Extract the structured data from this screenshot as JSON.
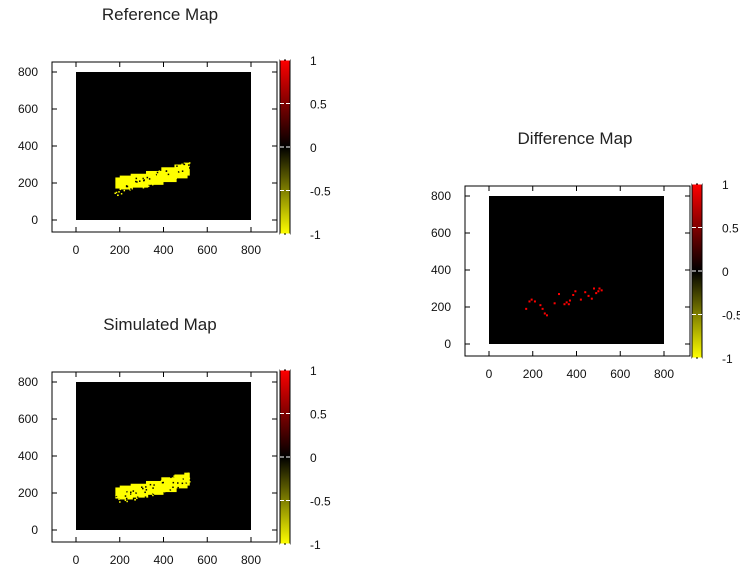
{
  "charts": [
    {
      "id": "reference-map",
      "type": "heatmap",
      "title": "Reference Map",
      "xlabel": "",
      "ylabel": "",
      "xlim": [
        0,
        800
      ],
      "ylim": [
        0,
        800
      ],
      "x_ticks": [
        "0",
        "200",
        "400",
        "600",
        "800"
      ],
      "y_ticks": [
        "0",
        "200",
        "400",
        "600",
        "800"
      ],
      "colorbar": {
        "range": [
          -1,
          1
        ],
        "ticks": [
          "1",
          "0.5",
          "0",
          "-0.5",
          "-1"
        ],
        "colors": {
          "-1": "#ffff00",
          "0": "#000000",
          "1": "#ff0000"
        }
      },
      "background_value": 0,
      "region": {
        "value": -1,
        "color": "#ffff00",
        "description": "yellow region, x approx 180-520, y approx 160-310"
      }
    },
    {
      "id": "simulated-map",
      "type": "heatmap",
      "title": "Simulated Map",
      "xlabel": "",
      "ylabel": "",
      "xlim": [
        0,
        800
      ],
      "ylim": [
        0,
        800
      ],
      "x_ticks": [
        "0",
        "200",
        "400",
        "600",
        "800"
      ],
      "y_ticks": [
        "0",
        "200",
        "400",
        "600",
        "800"
      ],
      "colorbar": {
        "range": [
          -1,
          1
        ],
        "ticks": [
          "1",
          "0.5",
          "0",
          "-0.5",
          "-1"
        ],
        "colors": {
          "-1": "#ffff00",
          "0": "#000000",
          "1": "#ff0000"
        }
      },
      "background_value": 0,
      "region": {
        "value": -1,
        "color": "#ffff00",
        "description": "yellow region, x approx 180-520, y approx 160-310"
      }
    },
    {
      "id": "difference-map",
      "type": "heatmap",
      "title": "Difference Map",
      "xlabel": "",
      "ylabel": "",
      "xlim": [
        0,
        800
      ],
      "ylim": [
        0,
        800
      ],
      "x_ticks": [
        "0",
        "200",
        "400",
        "600",
        "800"
      ],
      "y_ticks": [
        "0",
        "200",
        "400",
        "600",
        "800"
      ],
      "colorbar": {
        "range": [
          -1,
          1
        ],
        "ticks": [
          "1",
          "0.5",
          "0",
          "-0.5",
          "-1"
        ],
        "colors": {
          "-1": "#ffff00",
          "0": "#000000",
          "1": "#ff0000"
        }
      },
      "background_value": 0,
      "region": {
        "value": 1,
        "color": "#ff0000",
        "description": "sparse red pixels, x approx 170-520, y approx 150-310"
      }
    }
  ],
  "chart_data": [
    {
      "type": "heatmap",
      "title": "Reference Map",
      "xlim": [
        0,
        800
      ],
      "ylim": [
        0,
        800
      ],
      "value_range": [
        -1,
        1
      ],
      "background": 0,
      "cells": [
        {
          "x": [
            180,
            210
          ],
          "y": [
            170,
            230
          ],
          "v": -1
        },
        {
          "x": [
            200,
            260
          ],
          "y": [
            165,
            240
          ],
          "v": -1
        },
        {
          "x": [
            250,
            330
          ],
          "y": [
            175,
            250
          ],
          "v": -1
        },
        {
          "x": [
            320,
            400
          ],
          "y": [
            190,
            265
          ],
          "v": -1
        },
        {
          "x": [
            390,
            460
          ],
          "y": [
            205,
            285
          ],
          "v": -1
        },
        {
          "x": [
            450,
            510
          ],
          "y": [
            225,
            300
          ],
          "v": -1
        },
        {
          "x": [
            495,
            520
          ],
          "y": [
            240,
            310
          ],
          "v": -1
        }
      ]
    },
    {
      "type": "heatmap",
      "title": "Simulated Map",
      "xlim": [
        0,
        800
      ],
      "ylim": [
        0,
        800
      ],
      "value_range": [
        -1,
        1
      ],
      "background": 0,
      "cells": [
        {
          "x": [
            180,
            210
          ],
          "y": [
            170,
            230
          ],
          "v": -1
        },
        {
          "x": [
            200,
            260
          ],
          "y": [
            165,
            240
          ],
          "v": -1
        },
        {
          "x": [
            250,
            330
          ],
          "y": [
            175,
            250
          ],
          "v": -1
        },
        {
          "x": [
            320,
            400
          ],
          "y": [
            190,
            265
          ],
          "v": -1
        },
        {
          "x": [
            390,
            460
          ],
          "y": [
            205,
            285
          ],
          "v": -1
        },
        {
          "x": [
            450,
            510
          ],
          "y": [
            225,
            300
          ],
          "v": -1
        },
        {
          "x": [
            495,
            520
          ],
          "y": [
            240,
            310
          ],
          "v": -1
        }
      ]
    },
    {
      "type": "heatmap",
      "title": "Difference Map",
      "xlim": [
        0,
        800
      ],
      "ylim": [
        0,
        800
      ],
      "value_range": [
        -1,
        1
      ],
      "background": 0,
      "points": [
        [
          170,
          190
        ],
        [
          185,
          230
        ],
        [
          195,
          240
        ],
        [
          210,
          230
        ],
        [
          235,
          210
        ],
        [
          245,
          190
        ],
        [
          255,
          165
        ],
        [
          265,
          155
        ],
        [
          300,
          220
        ],
        [
          320,
          270
        ],
        [
          345,
          215
        ],
        [
          355,
          225
        ],
        [
          365,
          215
        ],
        [
          370,
          235
        ],
        [
          385,
          265
        ],
        [
          395,
          285
        ],
        [
          420,
          240
        ],
        [
          440,
          280
        ],
        [
          455,
          260
        ],
        [
          470,
          245
        ],
        [
          480,
          300
        ],
        [
          490,
          275
        ],
        [
          500,
          285
        ],
        [
          505,
          300
        ],
        [
          515,
          290
        ]
      ],
      "v": 1
    }
  ]
}
